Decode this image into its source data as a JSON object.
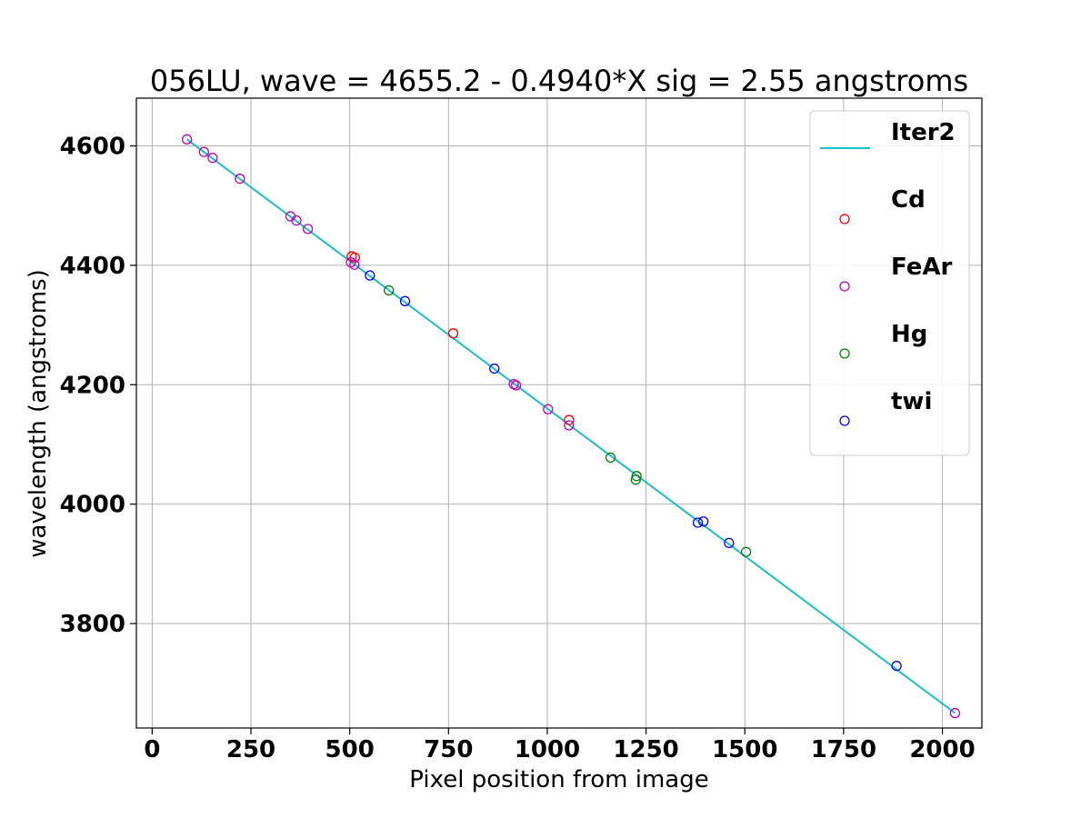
{
  "chart_data": {
    "type": "scatter",
    "title": "056LU,   wave = 4655.2 - 0.4940*X  sig = 2.55 angstroms",
    "xlabel": "Pixel position from image",
    "ylabel": "wavelength (angstroms)",
    "xlim": [
      -40,
      2100
    ],
    "ylim": [
      3625,
      4680
    ],
    "xticks": [
      0,
      250,
      500,
      750,
      1000,
      1250,
      1500,
      1750,
      2000
    ],
    "yticks": [
      3800,
      4000,
      4200,
      4400,
      4600
    ],
    "grid": true,
    "legend_position": "top-right",
    "fit_line": {
      "name": "Iter2",
      "color": "#17becf",
      "x": [
        88,
        2032
      ],
      "y": [
        4611,
        3650
      ]
    },
    "series": [
      {
        "name": "Cd",
        "color": "#ff0000",
        "x": [
          505,
          513,
          762,
          1055
        ],
        "y": [
          4415,
          4413,
          4286,
          4141
        ]
      },
      {
        "name": "FeAr",
        "color": "#bf00bf",
        "x": [
          88,
          131,
          153,
          222,
          350,
          365,
          394,
          503,
          512,
          915,
          921,
          1002,
          1055,
          2032
        ],
        "y": [
          4611,
          4590,
          4580,
          4545,
          4482,
          4475,
          4461,
          4405,
          4401,
          4201,
          4199,
          4159,
          4132,
          3650
        ]
      },
      {
        "name": "Hg",
        "color": "#008000",
        "x": [
          599,
          1160,
          1224,
          1226,
          1503
        ],
        "y": [
          4358,
          4078,
          4041,
          4047,
          3920
        ]
      },
      {
        "name": "twi",
        "color": "#0000ff",
        "x": [
          551,
          640,
          866,
          1381,
          1395,
          1460,
          1884
        ],
        "y": [
          4383,
          4340,
          4227,
          3969,
          3971,
          3935,
          3729
        ]
      }
    ]
  }
}
